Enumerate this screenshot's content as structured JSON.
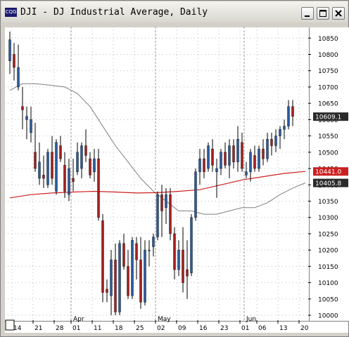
{
  "window": {
    "title": "DJI - DJ Industrial Average, Daily",
    "icon": "app-logo-icon",
    "buttons": [
      "minimize-icon",
      "maximize-icon",
      "close-icon"
    ]
  },
  "colors": {
    "up": "#2b5b9e",
    "down": "#a32020",
    "ma_red": "#cc2020",
    "ma_gray": "#808080",
    "grid": "#bbbbbb"
  },
  "chart_data": {
    "type": "candlestick",
    "title": "DJ Industrial Average, Daily",
    "y_ticks": [
      10000,
      10050,
      10100,
      10150,
      10200,
      10250,
      10300,
      10350,
      10400,
      10450,
      10500,
      10550,
      10600,
      10650,
      10700,
      10750,
      10800,
      10850
    ],
    "ylim": [
      9985,
      10885
    ],
    "x_ticks": [
      {
        "i": 0.5,
        "label": "14"
      },
      {
        "i": 5.5,
        "label": "21"
      },
      {
        "i": 10.5,
        "label": "28"
      },
      {
        "i": 14.5,
        "label": "01"
      },
      {
        "i": 19.5,
        "label": "11"
      },
      {
        "i": 24.5,
        "label": "18"
      },
      {
        "i": 29.5,
        "label": "25"
      },
      {
        "i": 34.5,
        "label": "02"
      },
      {
        "i": 39.5,
        "label": "09"
      },
      {
        "i": 44.5,
        "label": "16"
      },
      {
        "i": 49.5,
        "label": "23"
      },
      {
        "i": 54.5,
        "label": "01"
      },
      {
        "i": 58.5,
        "label": "06"
      },
      {
        "i": 63.5,
        "label": "13"
      },
      {
        "i": 68.5,
        "label": "20"
      }
    ],
    "month_labels": [
      {
        "i": 15,
        "label": "Apr"
      },
      {
        "i": 35,
        "label": "May"
      },
      {
        "i": 56,
        "label": "Jun"
      }
    ],
    "value_tags": [
      {
        "value": 10609.1,
        "label": "10609.1",
        "bg": "#2a2a2a",
        "fg": "#ffffff"
      },
      {
        "value": 10441.0,
        "label": "10441.0",
        "bg": "#cc2020",
        "fg": "#ffffff"
      },
      {
        "value": 10405.8,
        "label": "10405.8",
        "bg": "#2a2a2a",
        "fg": "#ffffff"
      }
    ],
    "candles": [
      [
        10780,
        10870,
        10740,
        10845
      ],
      [
        10800,
        10835,
        10720,
        10760
      ],
      [
        10700,
        10830,
        10690,
        10760
      ],
      [
        10640,
        10700,
        10570,
        10630
      ],
      [
        10600,
        10640,
        10540,
        10610
      ],
      [
        10560,
        10640,
        10530,
        10600
      ],
      [
        10500,
        10590,
        10440,
        10450
      ],
      [
        10420,
        10530,
        10400,
        10470
      ],
      [
        10430,
        10490,
        10390,
        10420
      ],
      [
        10400,
        10510,
        10390,
        10500
      ],
      [
        10500,
        10550,
        10400,
        10420
      ],
      [
        10380,
        10540,
        10370,
        10530
      ],
      [
        10520,
        10550,
        10470,
        10480
      ],
      [
        10460,
        10500,
        10360,
        10380
      ],
      [
        10370,
        10480,
        10350,
        10450
      ],
      [
        10420,
        10480,
        10380,
        10410
      ],
      [
        10440,
        10530,
        10430,
        10500
      ],
      [
        10450,
        10530,
        10420,
        10520
      ],
      [
        10520,
        10570,
        10470,
        10490
      ],
      [
        10480,
        10500,
        10420,
        10430
      ],
      [
        10440,
        10510,
        10410,
        10480
      ],
      [
        10480,
        10510,
        10290,
        10300
      ],
      [
        10290,
        10310,
        10040,
        10070
      ],
      [
        10080,
        10110,
        10040,
        10070
      ],
      [
        10060,
        10200,
        10000,
        10170
      ],
      [
        10170,
        10220,
        10000,
        10010
      ],
      [
        10010,
        10230,
        10000,
        10220
      ],
      [
        10220,
        10250,
        10140,
        10150
      ],
      [
        10150,
        10200,
        10050,
        10060
      ],
      [
        10060,
        10240,
        10050,
        10230
      ],
      [
        10220,
        10240,
        10110,
        10170
      ],
      [
        10170,
        10240,
        10020,
        10040
      ],
      [
        10040,
        10230,
        10030,
        10200
      ],
      [
        10200,
        10230,
        10150,
        10200
      ],
      [
        10210,
        10250,
        10180,
        10240
      ],
      [
        10240,
        10380,
        10230,
        10370
      ],
      [
        10370,
        10400,
        10240,
        10320
      ],
      [
        10330,
        10390,
        10280,
        10370
      ],
      [
        10370,
        10390,
        10230,
        10250
      ],
      [
        10250,
        10270,
        10110,
        10140
      ],
      [
        10140,
        10230,
        10120,
        10200
      ],
      [
        10200,
        10270,
        10070,
        10100
      ],
      [
        10140,
        10230,
        10050,
        10120
      ],
      [
        10130,
        10310,
        10120,
        10300
      ],
      [
        10300,
        10450,
        10290,
        10440
      ],
      [
        10440,
        10510,
        10400,
        10480
      ],
      [
        10480,
        10510,
        10420,
        10440
      ],
      [
        10450,
        10530,
        10440,
        10520
      ],
      [
        10510,
        10540,
        10440,
        10460
      ],
      [
        10440,
        10480,
        10360,
        10450
      ],
      [
        10450,
        10510,
        10430,
        10500
      ],
      [
        10500,
        10530,
        10450,
        10460
      ],
      [
        10460,
        10540,
        10420,
        10520
      ],
      [
        10520,
        10540,
        10450,
        10470
      ],
      [
        10470,
        10580,
        10440,
        10540
      ],
      [
        10530,
        10560,
        10440,
        10450
      ],
      [
        10430,
        10470,
        10420,
        10440
      ],
      [
        10440,
        10510,
        10410,
        10500
      ],
      [
        10490,
        10520,
        10440,
        10450
      ],
      [
        10450,
        10520,
        10440,
        10510
      ],
      [
        10510,
        10540,
        10460,
        10480
      ],
      [
        10480,
        10560,
        10470,
        10540
      ],
      [
        10540,
        10560,
        10490,
        10520
      ],
      [
        10520,
        10570,
        10500,
        10550
      ],
      [
        10550,
        10580,
        10510,
        10570
      ],
      [
        10570,
        10600,
        10540,
        10580
      ],
      [
        10580,
        10660,
        10570,
        10640
      ],
      [
        10640,
        10660,
        10580,
        10610
      ]
    ],
    "ma_slow": [
      [
        0,
        10360
      ],
      [
        5,
        10370
      ],
      [
        10,
        10375
      ],
      [
        15,
        10378
      ],
      [
        20,
        10380
      ],
      [
        25,
        10378
      ],
      [
        30,
        10375
      ],
      [
        35,
        10376
      ],
      [
        40,
        10380
      ],
      [
        45,
        10385
      ],
      [
        50,
        10400
      ],
      [
        55,
        10415
      ],
      [
        60,
        10425
      ],
      [
        65,
        10435
      ],
      [
        70,
        10441
      ]
    ],
    "ma_fast": [
      [
        0,
        10690
      ],
      [
        3,
        10710
      ],
      [
        6,
        10710
      ],
      [
        10,
        10705
      ],
      [
        13,
        10700
      ],
      [
        16,
        10680
      ],
      [
        19,
        10640
      ],
      [
        22,
        10580
      ],
      [
        25,
        10520
      ],
      [
        28,
        10470
      ],
      [
        31,
        10420
      ],
      [
        34,
        10380
      ],
      [
        37,
        10350
      ],
      [
        40,
        10320
      ],
      [
        43,
        10320
      ],
      [
        46,
        10310
      ],
      [
        49,
        10310
      ],
      [
        52,
        10320
      ],
      [
        55,
        10330
      ],
      [
        58,
        10330
      ],
      [
        61,
        10345
      ],
      [
        64,
        10370
      ],
      [
        67,
        10390
      ],
      [
        70,
        10406
      ]
    ]
  }
}
